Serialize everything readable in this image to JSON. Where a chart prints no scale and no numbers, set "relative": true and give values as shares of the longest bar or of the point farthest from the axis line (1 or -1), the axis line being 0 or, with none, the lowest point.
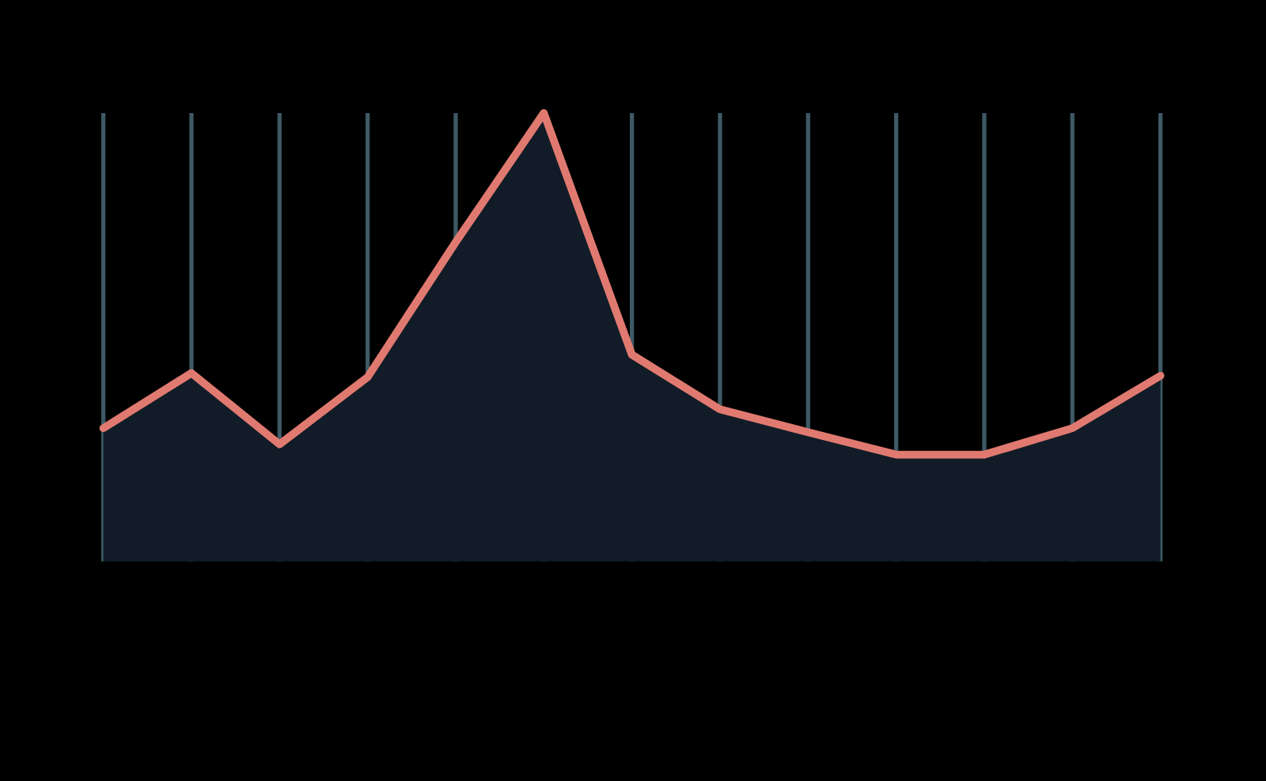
{
  "chart_data": {
    "type": "area",
    "relative": true,
    "categories": [
      null,
      null,
      null,
      null,
      null,
      null,
      null,
      null,
      null,
      null,
      null,
      null,
      null
    ],
    "values": [
      0.297,
      0.42,
      0.261,
      0.411,
      0.712,
      1,
      0.461,
      0.339,
      0.288,
      0.238,
      0.238,
      0.297,
      0.414
    ],
    "color": "#e07a70",
    "grid": "x",
    "marker": "none"
  }
}
